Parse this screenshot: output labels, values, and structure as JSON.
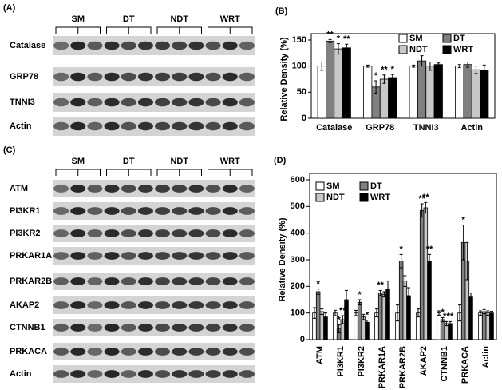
{
  "panels": {
    "A": {
      "label": "(A)",
      "groups": [
        "SM",
        "DT",
        "NDT",
        "WRT"
      ],
      "rows": [
        "Catalase",
        "GRP78",
        "TNNI3",
        "Actin"
      ]
    },
    "C": {
      "label": "(C)",
      "groups": [
        "SM",
        "DT",
        "NDT",
        "WRT"
      ],
      "rows": [
        "ATM",
        "PI3KR1",
        "PI3KR2",
        "PRKAR1A",
        "PRKAR2B",
        "AKAP2",
        "CTNNB1",
        "PRKACA",
        "Actin"
      ]
    }
  },
  "chart_data": [
    {
      "label": "(B)",
      "type": "bar",
      "ylabel": "Relative Density (%)",
      "categories": [
        "Catalase",
        "GRP78",
        "TNNI3",
        "Actin"
      ],
      "series": [
        {
          "name": "SM",
          "color": "#ffffff",
          "values": [
            100,
            100,
            100,
            100
          ],
          "errors": [
            8,
            2,
            2,
            3
          ],
          "significance": [
            null,
            null,
            null,
            null
          ]
        },
        {
          "name": "DT",
          "color": "#808080",
          "values": [
            148,
            60,
            110,
            103
          ],
          "errors": [
            3,
            12,
            10,
            5
          ],
          "significance": [
            "**",
            "*",
            null,
            null
          ]
        },
        {
          "name": "NDT",
          "color": "#c8c8c8",
          "values": [
            133,
            75,
            100,
            93
          ],
          "errors": [
            10,
            8,
            8,
            7
          ],
          "significance": [
            "*",
            "**",
            null,
            null
          ]
        },
        {
          "name": "WRT",
          "color": "#000000",
          "values": [
            135,
            78,
            103,
            92
          ],
          "errors": [
            7,
            6,
            3,
            10
          ],
          "significance": [
            "**",
            "*",
            null,
            null
          ]
        }
      ],
      "ylim": [
        0,
        150
      ],
      "yticks": [
        0,
        50,
        100,
        150
      ],
      "legend": "upper right"
    },
    {
      "label": "(D)",
      "type": "bar",
      "ylabel": "Relative Density (%)",
      "categories": [
        "ATM",
        "PI3KR1",
        "PI3KR2",
        "PRKAR1A",
        "PRKAR2B",
        "AKAP2",
        "CTNNB1",
        "PRKACA",
        "Actin"
      ],
      "series": [
        {
          "name": "SM",
          "color": "#ffffff",
          "values": [
            100,
            100,
            100,
            100,
            100,
            100,
            100,
            100,
            100
          ],
          "errors": [
            20,
            10,
            10,
            15,
            30,
            15,
            8,
            30,
            8
          ],
          "significance": [
            null,
            null,
            null,
            null,
            null,
            null,
            null,
            null,
            null
          ]
        },
        {
          "name": "DT",
          "color": "#808080",
          "values": [
            180,
            40,
            140,
            175,
            295,
            485,
            75,
            365,
            105
          ],
          "errors": [
            10,
            15,
            10,
            10,
            25,
            25,
            8,
            65,
            8
          ],
          "significance": [
            "*",
            "*",
            "*",
            "**",
            "*",
            "**",
            "*",
            "*",
            null
          ]
        },
        {
          "name": "NDT",
          "color": "#c8c8c8",
          "values": [
            105,
            75,
            85,
            170,
            220,
            495,
            60,
            295,
            100
          ],
          "errors": [
            10,
            15,
            10,
            10,
            20,
            20,
            8,
            70,
            8
          ],
          "significance": [
            null,
            "**",
            null,
            null,
            null,
            "**",
            "**",
            null,
            null
          ]
        },
        {
          "name": "WRT",
          "color": "#000000",
          "values": [
            85,
            150,
            65,
            190,
            165,
            295,
            60,
            160,
            100
          ],
          "errors": [
            15,
            35,
            8,
            30,
            30,
            25,
            8,
            15,
            6
          ],
          "significance": [
            null,
            null,
            "*",
            null,
            null,
            "**",
            "**",
            null,
            null
          ]
        }
      ],
      "ylim": [
        0,
        600
      ],
      "yticks": [
        0,
        100,
        200,
        300,
        400,
        500,
        600
      ],
      "legend": "upper left"
    }
  ]
}
